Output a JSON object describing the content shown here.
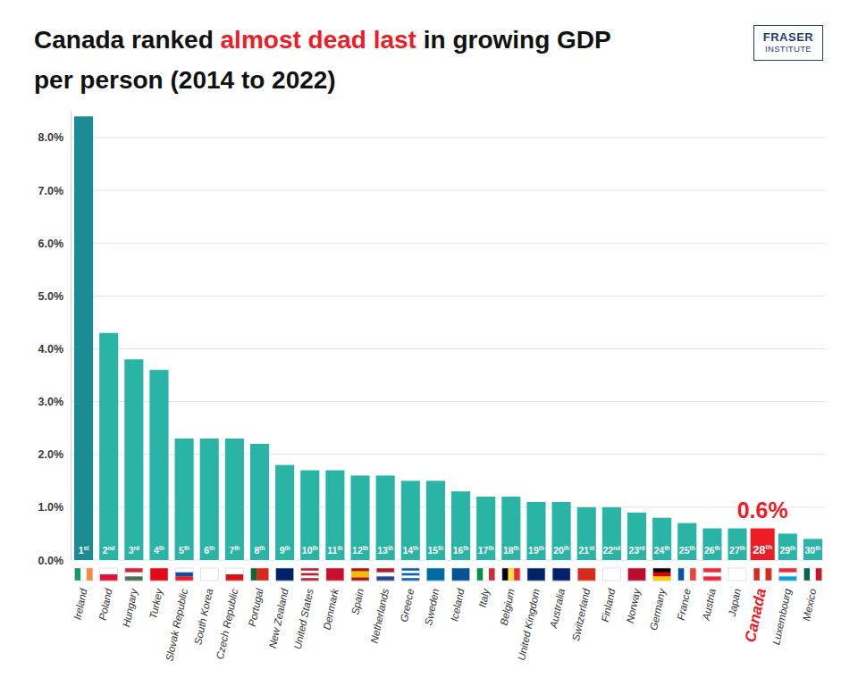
{
  "chart_data": {
    "type": "bar",
    "title": "Canada ranked almost dead last in growing GDP per person (2014 to 2022)",
    "title_highlight": "almost dead last",
    "logo": [
      "FRASER",
      "INSTITUTE"
    ],
    "categories": [
      "Ireland",
      "Poland",
      "Hungary",
      "Turkey",
      "Slovak Republic",
      "South Korea",
      "Czech Republic",
      "Portugal",
      "New Zealand",
      "United States",
      "Denmark",
      "Spain",
      "Netherlands",
      "Greece",
      "Sweden",
      "Iceland",
      "Italy",
      "Belgium",
      "United Kingdom",
      "Australia",
      "Switzerland",
      "Finland",
      "Norway",
      "Germany",
      "France",
      "Austria",
      "Japan",
      "Canada",
      "Luxembourg",
      "Mexico"
    ],
    "values": [
      8.4,
      4.3,
      3.8,
      3.6,
      2.3,
      2.3,
      2.3,
      2.2,
      1.8,
      1.7,
      1.7,
      1.6,
      1.6,
      1.5,
      1.5,
      1.3,
      1.2,
      1.2,
      1.1,
      1.1,
      1.0,
      1.0,
      0.9,
      0.8,
      0.7,
      0.6,
      0.6,
      0.6,
      0.5,
      0.4
    ],
    "rank_labels": [
      "1st",
      "2nd",
      "3rd",
      "4th",
      "5th",
      "6th",
      "7th",
      "8th",
      "9th",
      "10th",
      "11th",
      "12th",
      "13th",
      "14th",
      "15th",
      "16th",
      "17th",
      "18th",
      "19th",
      "20th",
      "21st",
      "22nd",
      "23rd",
      "24th",
      "25th",
      "26th",
      "27th",
      "28th",
      "29th",
      "30th"
    ],
    "colors": [
      "#1c8c94",
      "#29b4a5",
      "#29b4a5",
      "#29b4a5",
      "#29b4a5",
      "#29b4a5",
      "#29b4a5",
      "#29b4a5",
      "#29b4a5",
      "#29b4a5",
      "#29b4a5",
      "#29b4a5",
      "#29b4a5",
      "#29b4a5",
      "#29b4a5",
      "#29b4a5",
      "#29b4a5",
      "#29b4a5",
      "#29b4a5",
      "#29b4a5",
      "#29b4a5",
      "#29b4a5",
      "#29b4a5",
      "#29b4a5",
      "#29b4a5",
      "#29b4a5",
      "#29b4a5",
      "#ee1c25",
      "#29b4a5",
      "#29b4a5"
    ],
    "annotations": [
      {
        "category": "Canada",
        "text": "0.6%",
        "color": "#ee1c25"
      }
    ],
    "ylim": [
      0,
      8.5
    ],
    "yticks": [
      {
        "value": 0,
        "label": "0.0%"
      },
      {
        "value": 1,
        "label": "1.0%"
      },
      {
        "value": 2,
        "label": "2.0%"
      },
      {
        "value": 3,
        "label": "3.0%"
      },
      {
        "value": 4,
        "label": "4.0%"
      },
      {
        "value": 5,
        "label": "5.0%"
      },
      {
        "value": 6,
        "label": "6.0%"
      },
      {
        "value": 7,
        "label": "7.0%"
      },
      {
        "value": 8,
        "label": "8.0%"
      }
    ],
    "grid": true
  }
}
